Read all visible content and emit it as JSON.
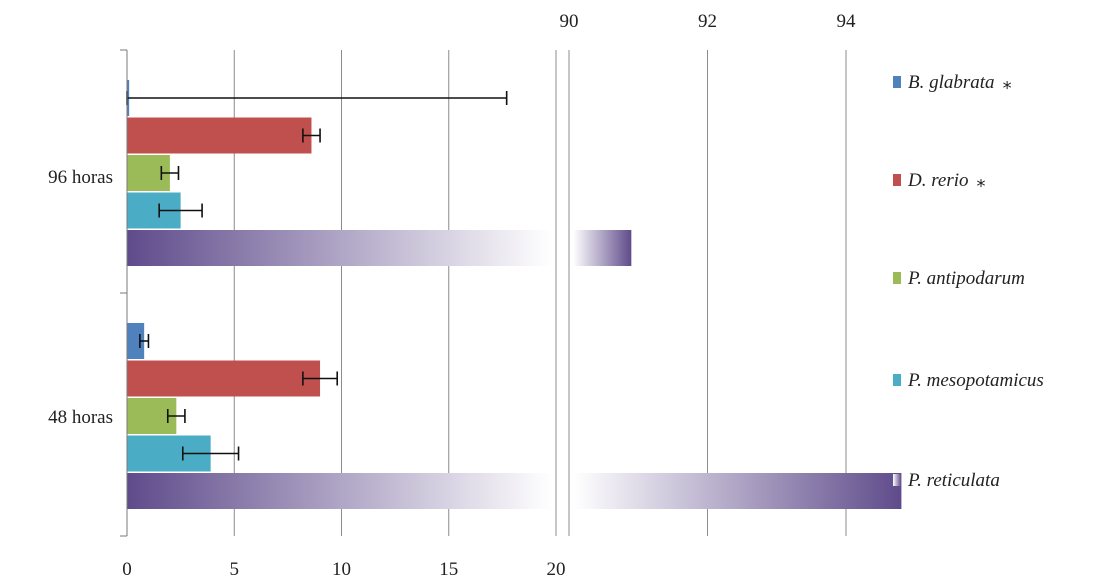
{
  "chart_data": {
    "type": "bar",
    "orientation": "horizontal",
    "broken_axis": true,
    "categories": [
      "96 horas",
      "48 horas"
    ],
    "x_ticks_lower": [
      0,
      5,
      10,
      15,
      20
    ],
    "x_ticks_upper": [
      90,
      92,
      94
    ],
    "xlim_lower": [
      0,
      20
    ],
    "xlim_upper": [
      90,
      94
    ],
    "grid": true,
    "legend_position": "right",
    "series": [
      {
        "name": "B. glabrata",
        "marker": "*",
        "color": "#4F81BD",
        "values": [
          0.1,
          0.8
        ],
        "errors": [
          17.6,
          0.2
        ]
      },
      {
        "name": "D. rerio",
        "marker": "*",
        "color": "#C0504D",
        "values": [
          8.6,
          9.0
        ],
        "errors": [
          0.4,
          0.8
        ]
      },
      {
        "name": "P. antipodarum",
        "marker": "",
        "color": "#9BBB59",
        "values": [
          2.0,
          2.3
        ],
        "errors": [
          0.4,
          0.4
        ]
      },
      {
        "name": "P. mesopotamicus",
        "marker": "",
        "color": "#4BACC6",
        "values": [
          2.5,
          3.9
        ],
        "errors": [
          1.0,
          1.3
        ]
      },
      {
        "name": "P. reticulata",
        "marker": "",
        "color": "#5F4B8B",
        "values": [
          90.9,
          94.8
        ],
        "errors": [
          0,
          0
        ]
      }
    ]
  }
}
